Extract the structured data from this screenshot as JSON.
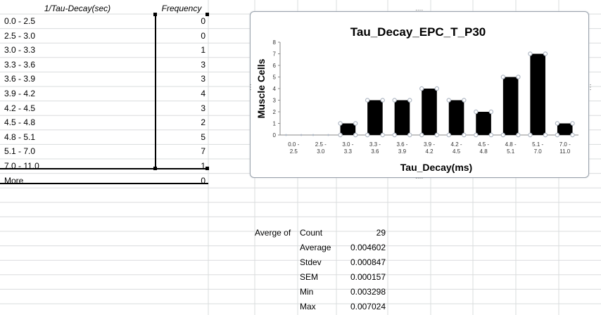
{
  "table": {
    "header_bin": "1/Tau-Decay(sec)",
    "header_freq": "Frequency",
    "rows": [
      {
        "bin": "0.0 - 2.5",
        "freq": "0"
      },
      {
        "bin": "2.5 - 3.0",
        "freq": "0"
      },
      {
        "bin": "3.0 - 3.3",
        "freq": "1"
      },
      {
        "bin": "3.3 - 3.6",
        "freq": "3"
      },
      {
        "bin": "3.6 - 3.9",
        "freq": "3"
      },
      {
        "bin": "3.9 - 4.2",
        "freq": "4"
      },
      {
        "bin": "4.2 - 4.5",
        "freq": "3"
      },
      {
        "bin": "4.5 - 4.8",
        "freq": "2"
      },
      {
        "bin": "4.8 - 5.1",
        "freq": "5"
      },
      {
        "bin": "5.1 - 7.0",
        "freq": "7"
      },
      {
        "bin": "7.0 - 11.0",
        "freq": "1"
      },
      {
        "bin": "More",
        "freq": "0"
      }
    ]
  },
  "stats": {
    "label": "Averge of",
    "rows": [
      {
        "name": "Count",
        "value": "29"
      },
      {
        "name": "Average",
        "value": "0.004602"
      },
      {
        "name": "Stdev",
        "value": "0.000847"
      },
      {
        "name": "SEM",
        "value": "0.000157"
      },
      {
        "name": "Min",
        "value": "0.003298"
      },
      {
        "name": "Max",
        "value": "0.007024"
      }
    ]
  },
  "colors": {
    "gridline": "#dadcdd",
    "bar": "#000000",
    "chart_border": "#9aa3ad",
    "marker": "#b0b8c4"
  },
  "chart_data": {
    "type": "bar",
    "title": "Tau_Decay_EPC_T_P30",
    "xlabel": "Tau_Decay(ms)",
    "ylabel": "Muscle Cells",
    "categories": [
      [
        "0.0 -",
        "2.5"
      ],
      [
        "2.5 -",
        "3.0"
      ],
      [
        "3.0 -",
        "3.3"
      ],
      [
        "3.3 -",
        "3.6"
      ],
      [
        "3.6 -",
        "3.9"
      ],
      [
        "3.9 -",
        "4.2"
      ],
      [
        "4.2 -",
        "4.5"
      ],
      [
        "4.5 -",
        "4.8"
      ],
      [
        "4.8 -",
        "5.1"
      ],
      [
        "5.1 -",
        "7.0"
      ],
      [
        "7.0 -",
        "11.0"
      ]
    ],
    "values": [
      0,
      0,
      1,
      3,
      3,
      4,
      3,
      2,
      5,
      7,
      1
    ],
    "ylim": [
      0,
      8
    ],
    "yticks": [
      0,
      1,
      2,
      3,
      4,
      5,
      6,
      7,
      8
    ],
    "grid": false,
    "legend": "none"
  }
}
